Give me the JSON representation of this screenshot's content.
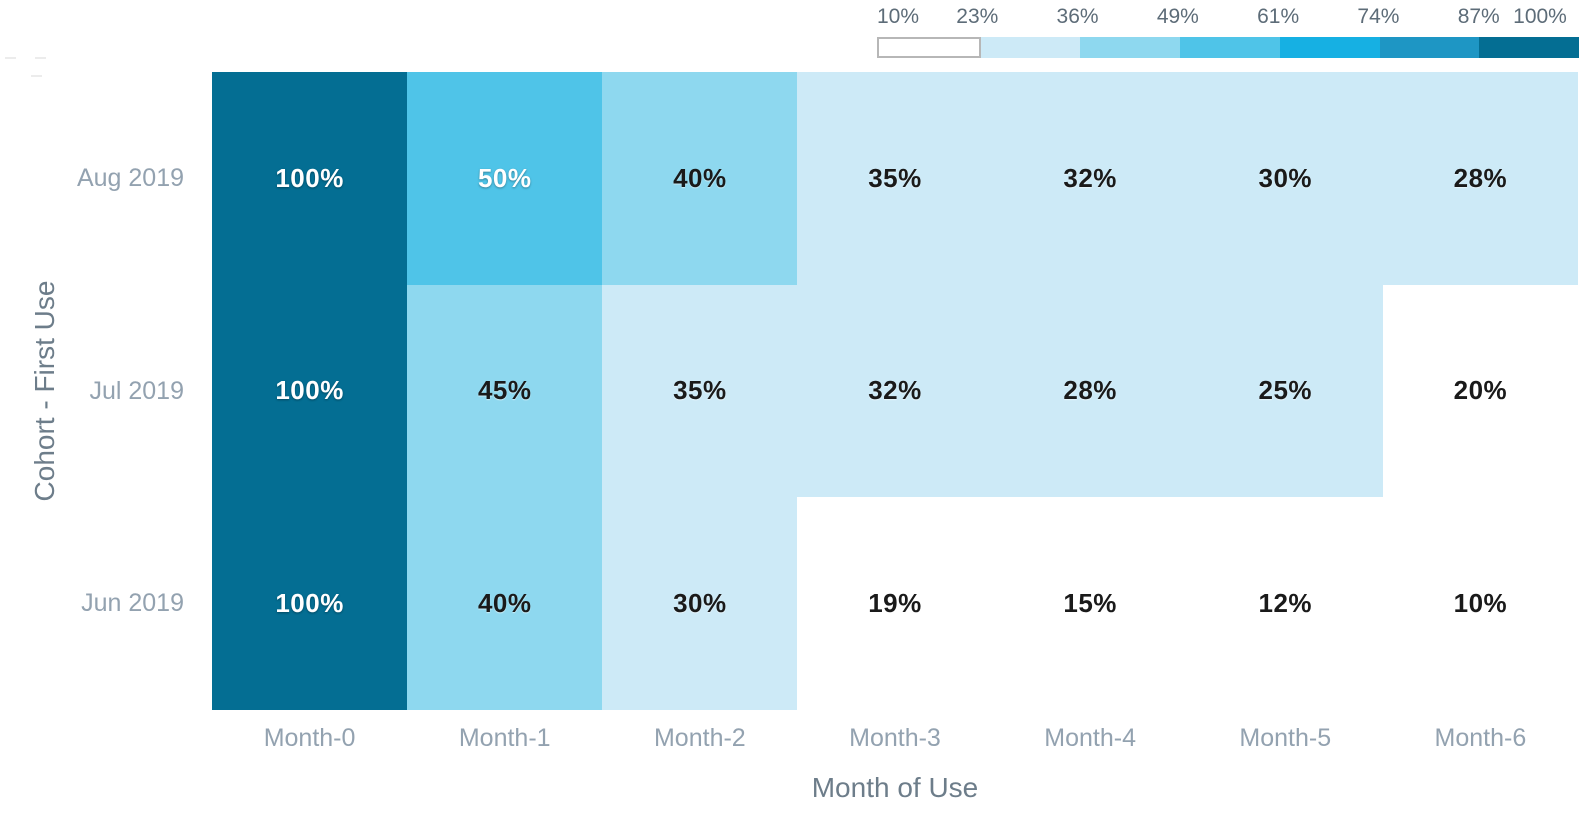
{
  "chart_data": {
    "type": "heatmap",
    "xlabel": "Month of Use",
    "ylabel": "Cohort - First Use",
    "x_categories": [
      "Month-0",
      "Month-1",
      "Month-2",
      "Month-3",
      "Month-4",
      "Month-5",
      "Month-6"
    ],
    "y_categories": [
      "Aug 2019",
      "Jul 2019",
      "Jun 2019"
    ],
    "series": [
      {
        "name": "Aug 2019",
        "values": [
          100,
          50,
          40,
          35,
          32,
          30,
          28
        ]
      },
      {
        "name": "Jul 2019",
        "values": [
          100,
          45,
          35,
          32,
          28,
          25,
          20
        ]
      },
      {
        "name": "Jun 2019",
        "values": [
          100,
          40,
          30,
          19,
          15,
          12,
          10
        ]
      }
    ],
    "value_suffix": "%",
    "legend": {
      "position": "top-right",
      "tick_labels": [
        "10%",
        "23%",
        "36%",
        "49%",
        "61%",
        "74%",
        "87%",
        "100%"
      ],
      "bin_edges": [
        10,
        23,
        36,
        49,
        61,
        74,
        87,
        100
      ],
      "bin_colors": [
        "#ffffff",
        "#cdeaf7",
        "#8ed8ef",
        "#4fc4e8",
        "#16b0e3",
        "#1e96c4",
        "#046e93"
      ]
    },
    "label_style": {
      "light_text_color": "#ffffff",
      "dark_text_color": "#1a1a1a",
      "light_text_min_value": 49
    },
    "grid": false
  },
  "colors": {
    "background": "#ffffff",
    "tick_label": "#93a2b0",
    "axis_title": "#6d7d8a",
    "legend_label": "#5d6c78",
    "legend_first_swatch_border": "#b7b7b7"
  }
}
